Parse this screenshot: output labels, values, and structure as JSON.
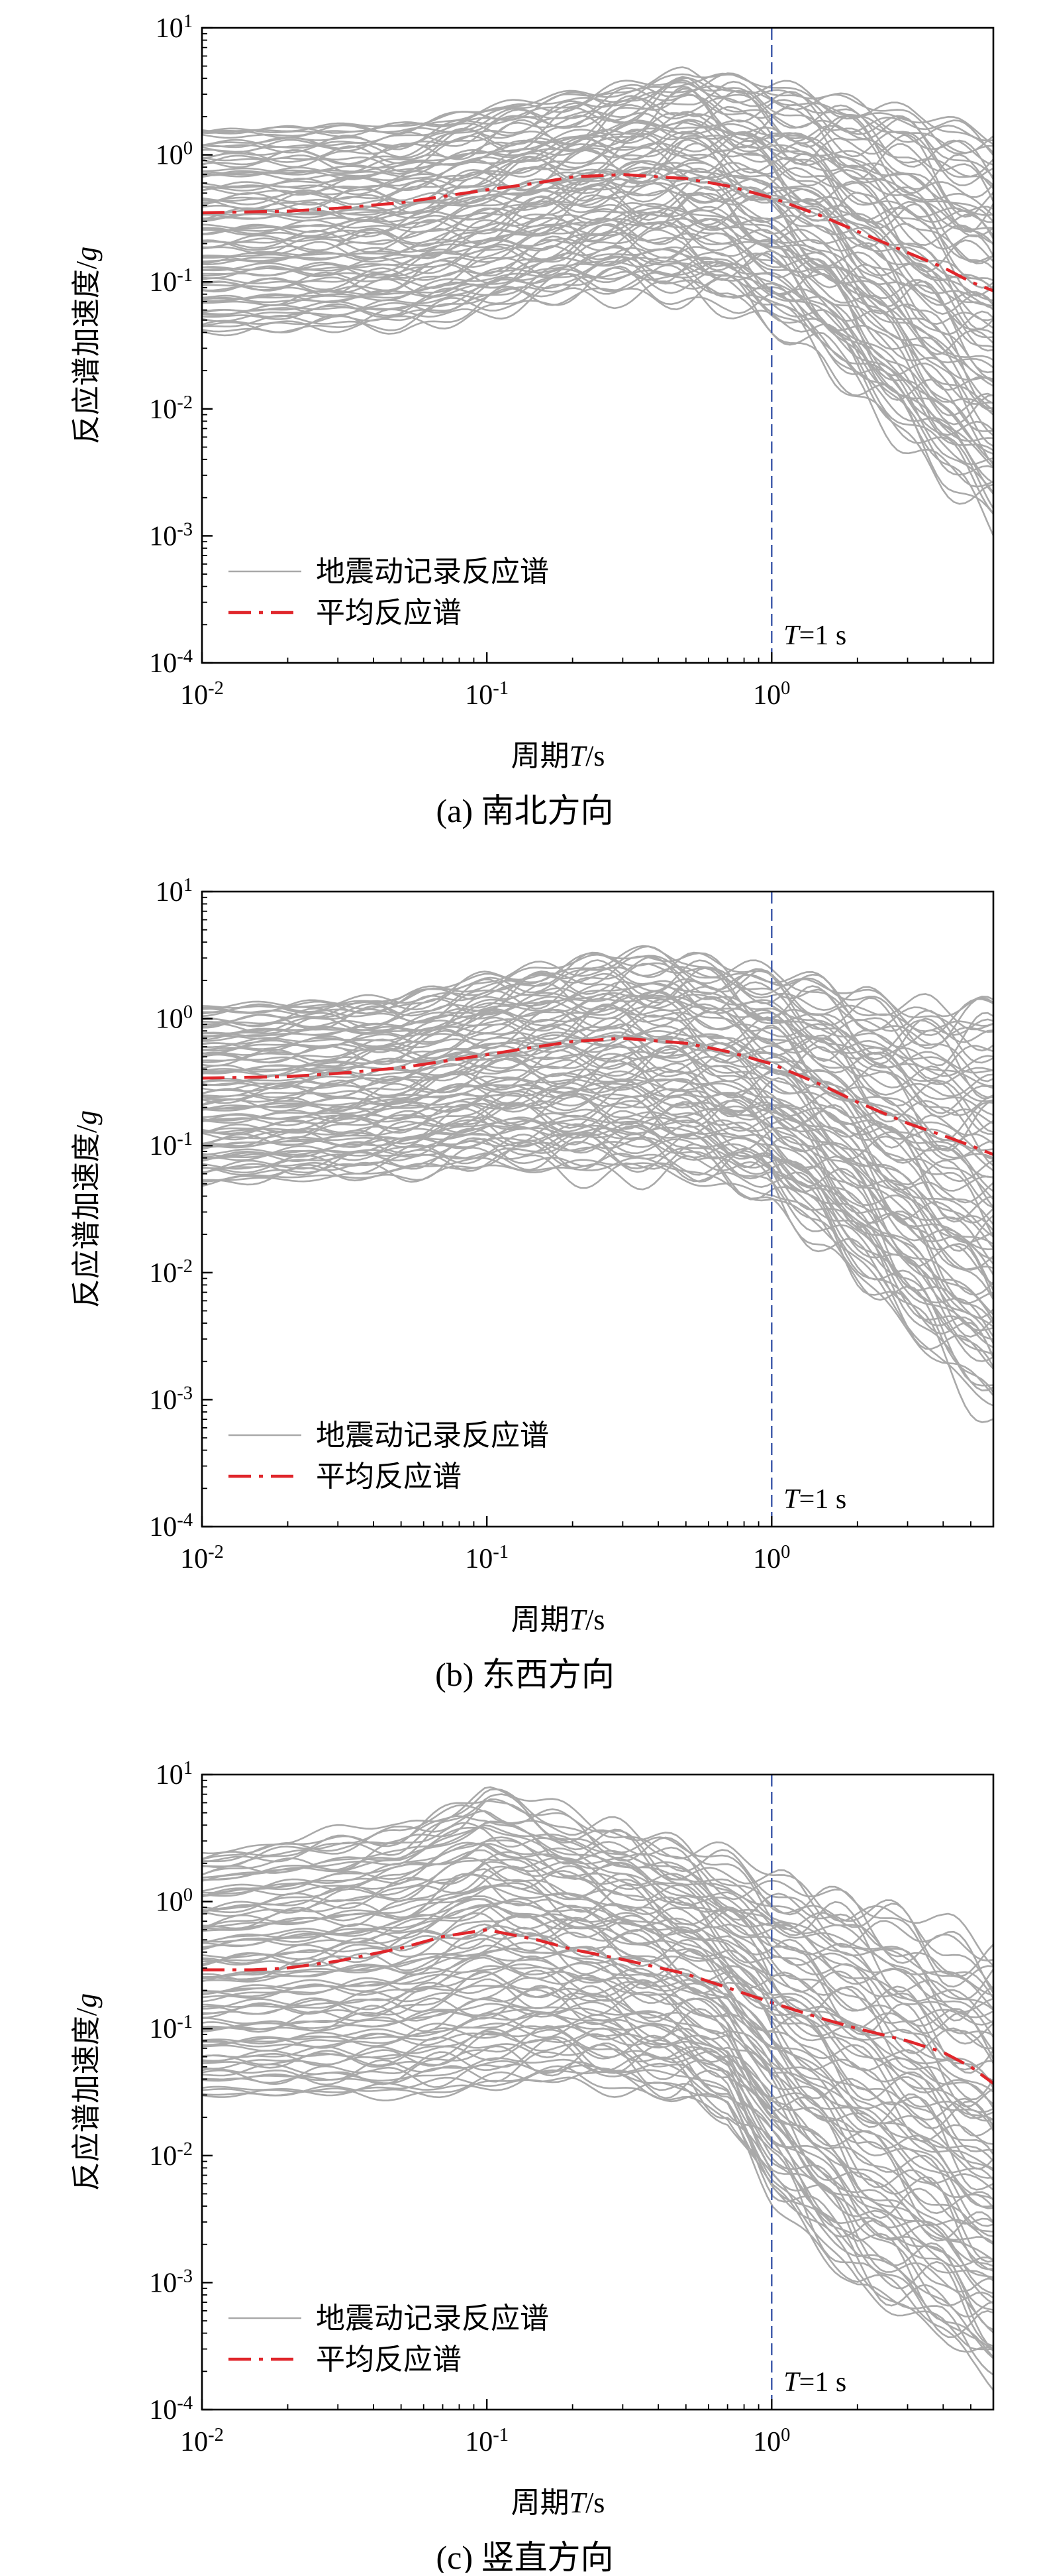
{
  "figure": {
    "panels": [
      {
        "id": "a",
        "caption": "(a) 南北方向"
      },
      {
        "id": "b",
        "caption": "(b) 东西方向"
      },
      {
        "id": "c",
        "caption": "(c) 竖直方向"
      }
    ]
  },
  "chart_data": [
    {
      "type": "line",
      "caption": "(a) 南北方向",
      "title": "",
      "xlabel": "周期T/s",
      "ylabel": "反应谱加速度/g",
      "xscale": "log",
      "yscale": "log",
      "xlim": [
        0.01,
        6.0
      ],
      "ylim": [
        0.0001,
        10
      ],
      "x_ticks": [
        "10-2",
        "10-1",
        "100"
      ],
      "y_ticks": [
        "10-4",
        "10-3",
        "10-2",
        "10-1",
        "100",
        "101"
      ],
      "grid": false,
      "legend_position": "lower-left",
      "vertical_line": {
        "x": 1.0,
        "label": "T=1 s",
        "color": "#3a56a8",
        "style": "dashed"
      },
      "series": [
        {
          "name": "地震动记录反应谱",
          "kind": "envelope",
          "color": "#a9a9a9",
          "x": [
            0.01,
            0.05,
            0.1,
            0.2,
            0.3,
            0.5,
            0.7,
            1.0,
            1.5,
            2.0,
            3.0,
            4.0,
            5.0,
            6.0
          ],
          "lower": [
            0.04,
            0.045,
            0.06,
            0.08,
            0.09,
            0.08,
            0.07,
            0.05,
            0.03,
            0.015,
            0.006,
            0.003,
            0.002,
            0.0015
          ],
          "upper": [
            1.7,
            1.8,
            2.4,
            3.0,
            3.5,
            4.5,
            4.0,
            3.5,
            3.0,
            2.6,
            2.2,
            1.8,
            1.6,
            1.5
          ]
        },
        {
          "name": "平均反应谱",
          "kind": "line",
          "color": "#e0262b",
          "style": "dashdot",
          "x": [
            0.01,
            0.02,
            0.03,
            0.05,
            0.07,
            0.1,
            0.15,
            0.2,
            0.3,
            0.5,
            0.7,
            1.0,
            1.5,
            2.0,
            3.0,
            4.0,
            5.0,
            6.0
          ],
          "y": [
            0.35,
            0.36,
            0.38,
            0.42,
            0.47,
            0.53,
            0.6,
            0.67,
            0.7,
            0.65,
            0.57,
            0.46,
            0.33,
            0.25,
            0.17,
            0.13,
            0.1,
            0.085
          ]
        }
      ]
    },
    {
      "type": "line",
      "caption": "(b) 东西方向",
      "title": "",
      "xlabel": "周期T/s",
      "ylabel": "反应谱加速度/g",
      "xscale": "log",
      "yscale": "log",
      "xlim": [
        0.01,
        6.0
      ],
      "ylim": [
        0.0001,
        10
      ],
      "x_ticks": [
        "10-2",
        "10-1",
        "100"
      ],
      "y_ticks": [
        "10-4",
        "10-3",
        "10-2",
        "10-1",
        "100",
        "101"
      ],
      "grid": false,
      "legend_position": "lower-left",
      "vertical_line": {
        "x": 1.0,
        "label": "T=1 s",
        "color": "#3a56a8",
        "style": "dashed"
      },
      "series": [
        {
          "name": "地震动记录反应谱",
          "kind": "envelope",
          "color": "#a9a9a9",
          "x": [
            0.01,
            0.05,
            0.1,
            0.2,
            0.3,
            0.5,
            0.7,
            1.0,
            1.5,
            2.0,
            3.0,
            4.0,
            5.0,
            6.0
          ],
          "lower": [
            0.05,
            0.06,
            0.07,
            0.065,
            0.065,
            0.06,
            0.05,
            0.04,
            0.02,
            0.01,
            0.004,
            0.002,
            0.0013,
            0.0009
          ],
          "upper": [
            1.3,
            1.5,
            2.2,
            2.8,
            3.2,
            3.1,
            2.6,
            2.2,
            1.8,
            1.5,
            1.3,
            1.2,
            1.25,
            1.3
          ]
        },
        {
          "name": "平均反应谱",
          "kind": "line",
          "color": "#e0262b",
          "style": "dashdot",
          "x": [
            0.01,
            0.02,
            0.03,
            0.05,
            0.07,
            0.1,
            0.15,
            0.2,
            0.3,
            0.5,
            0.7,
            1.0,
            1.5,
            2.0,
            3.0,
            4.0,
            5.0,
            6.0
          ],
          "y": [
            0.34,
            0.35,
            0.37,
            0.41,
            0.46,
            0.52,
            0.6,
            0.66,
            0.7,
            0.64,
            0.55,
            0.44,
            0.3,
            0.22,
            0.15,
            0.12,
            0.1,
            0.085
          ]
        }
      ]
    },
    {
      "type": "line",
      "caption": "(c) 竖直方向",
      "title": "",
      "xlabel": "周期T/s",
      "ylabel": "反应谱加速度/g",
      "xscale": "log",
      "yscale": "log",
      "xlim": [
        0.01,
        6.0
      ],
      "ylim": [
        0.0001,
        10
      ],
      "x_ticks": [
        "10-2",
        "10-1",
        "100"
      ],
      "y_ticks": [
        "10-4",
        "10-3",
        "10-2",
        "10-1",
        "100",
        "101"
      ],
      "grid": false,
      "legend_position": "lower-left",
      "vertical_line": {
        "x": 1.0,
        "label": "T=1 s",
        "color": "#3a56a8",
        "style": "dashed"
      },
      "series": [
        {
          "name": "地震动记录反应谱",
          "kind": "envelope",
          "color": "#a9a9a9",
          "x": [
            0.01,
            0.05,
            0.1,
            0.2,
            0.3,
            0.5,
            0.7,
            1.0,
            1.5,
            2.0,
            3.0,
            4.0,
            5.0,
            6.0
          ],
          "lower": [
            0.03,
            0.03,
            0.035,
            0.04,
            0.035,
            0.03,
            0.02,
            0.005,
            0.002,
            0.001,
            0.0006,
            0.0004,
            0.00025,
            0.0002
          ],
          "upper": [
            2.5,
            4.0,
            7.5,
            4.5,
            3.8,
            2.6,
            2.0,
            1.5,
            1.2,
            1.0,
            0.7,
            0.5,
            0.45,
            0.4
          ]
        },
        {
          "name": "平均反应谱",
          "kind": "line",
          "color": "#e0262b",
          "style": "dashdot",
          "x": [
            0.01,
            0.015,
            0.02,
            0.03,
            0.05,
            0.07,
            0.1,
            0.15,
            0.2,
            0.3,
            0.5,
            0.7,
            1.0,
            1.5,
            2.0,
            3.0,
            4.0,
            5.0,
            6.0
          ],
          "y": [
            0.29,
            0.29,
            0.3,
            0.34,
            0.43,
            0.53,
            0.6,
            0.5,
            0.42,
            0.35,
            0.27,
            0.21,
            0.16,
            0.12,
            0.1,
            0.08,
            0.065,
            0.05,
            0.037
          ]
        }
      ]
    }
  ]
}
